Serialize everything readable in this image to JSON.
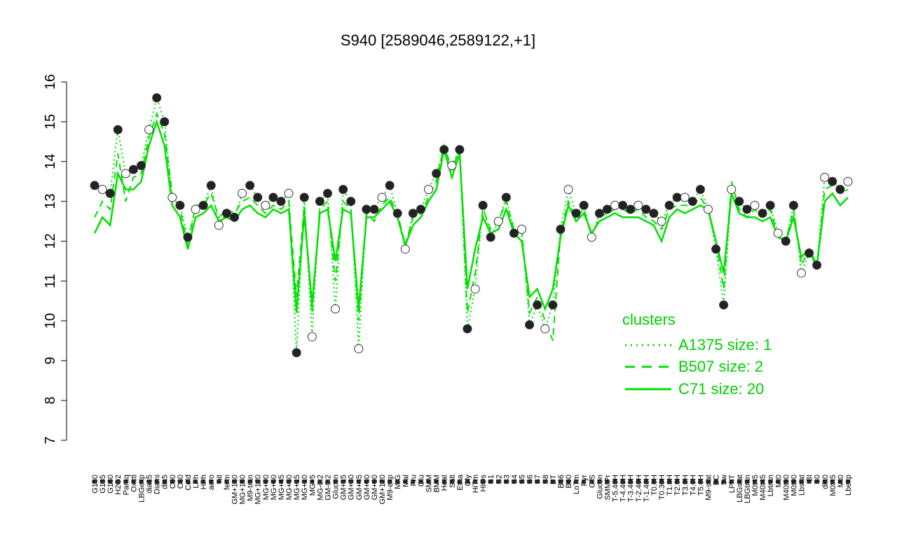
{
  "chart_data": {
    "type": "line",
    "title": "S940 [2589046,2589122,+1]",
    "xlabel": "",
    "ylabel": "",
    "ylim": [
      7,
      16
    ],
    "yticks": [
      7,
      8,
      9,
      10,
      11,
      12,
      13,
      14,
      15,
      16
    ],
    "grid": false,
    "legend": {
      "title": "clusters",
      "position": "right",
      "entries": [
        {
          "label": "A1375 size: 1",
          "style": "dotted"
        },
        {
          "label": "B507 size: 2",
          "style": "dashed"
        },
        {
          "label": "C71 size: 20",
          "style": "solid"
        }
      ]
    },
    "x_tick_labels": [
      "G150",
      "G135",
      "G180",
      "H2O2",
      "Paraq",
      "Oxctl",
      "LBGexp",
      "dia15",
      "Diami",
      "dia5",
      "C90",
      "C30",
      "Cold",
      "LPh",
      "HPh",
      "aero",
      "nit",
      "ferm",
      "GM+150",
      "MG+150",
      "M9-tran",
      "MG+120",
      "MG+90",
      "MG+60",
      "MG+45",
      "MG+30",
      "MG+15",
      "MG+10",
      "MG+5",
      "MG-0.2",
      "GM-0.2",
      "Glucon",
      "GM+15",
      "GM+30",
      "GM+45",
      "GM+60",
      "GM+90",
      "GM+120",
      "M9-exp",
      "M/G",
      "Mal",
      "Fru",
      "Glu",
      "SMM",
      "BMM",
      "Heat",
      "Salt",
      "Etha",
      "Gly",
      "HiTm",
      "HiOs",
      "S1",
      "S2",
      "S3",
      "S4",
      "S5",
      "S6",
      "S7",
      "S8",
      "BT",
      "B36",
      "B60",
      "LoTm",
      "Pyr",
      "G/S",
      "Glucon",
      "SMMPr",
      "T-5.40H",
      "T-4.40H",
      "T-3.40H",
      "T-2.40H",
      "T-1.40H",
      "T0.0H",
      "T0.30H",
      "T1.0H",
      "T2.0H",
      "T3.0H",
      "T4.0H",
      "T5.0H",
      "M9-stat",
      "BC",
      "Sw",
      "LPhT",
      "LBGstat",
      "LBGtran",
      "M0t45",
      "M40t45",
      "Lbtran",
      "Mt0",
      "M40t90",
      "M0t90",
      "Lbstat",
      "BI",
      "S0",
      "dia0",
      "M0t45",
      "Mt0",
      "Lbexp"
    ],
    "series": [
      {
        "style": "points",
        "values": [
          13.4,
          13.3,
          13.2,
          14.8,
          13.7,
          13.8,
          13.9,
          14.8,
          15.6,
          15.0,
          13.1,
          12.9,
          12.1,
          12.8,
          12.9,
          13.4,
          12.4,
          12.7,
          12.6,
          13.2,
          13.4,
          13.1,
          12.9,
          13.1,
          13.0,
          13.2,
          9.2,
          13.1,
          9.6,
          13.0,
          13.2,
          10.3,
          13.3,
          13.0,
          9.3,
          12.8,
          12.8,
          13.1,
          13.4,
          12.7,
          11.8,
          12.7,
          12.8,
          13.3,
          13.7,
          14.3,
          13.9,
          14.3,
          9.8,
          10.8,
          12.9,
          12.1,
          12.5,
          13.1,
          12.2,
          12.3,
          9.9,
          10.4,
          9.8,
          10.4,
          12.3,
          13.3,
          12.7,
          12.9,
          12.1,
          12.7,
          12.8,
          12.9,
          12.9,
          12.8,
          12.9,
          12.8,
          12.7,
          12.5,
          12.9,
          13.1,
          13.1,
          13.0,
          13.3,
          12.8,
          11.8,
          10.4,
          13.3,
          13.0,
          12.8,
          12.9,
          12.7,
          12.9,
          12.2,
          12.0,
          12.9,
          11.2,
          11.7,
          11.4,
          13.6,
          13.5,
          13.3,
          13.5
        ]
      },
      {
        "style": "solid",
        "values": [
          12.2,
          12.6,
          12.4,
          13.7,
          13.3,
          13.3,
          13.5,
          14.4,
          15.0,
          14.4,
          12.9,
          12.6,
          11.8,
          12.6,
          12.7,
          12.9,
          12.5,
          12.6,
          12.5,
          12.8,
          12.9,
          12.7,
          12.6,
          12.8,
          12.7,
          12.8,
          10.2,
          12.7,
          10.4,
          12.7,
          12.8,
          11.5,
          12.8,
          12.7,
          10.3,
          12.6,
          12.6,
          12.8,
          13.0,
          12.6,
          11.9,
          12.4,
          12.6,
          13.0,
          13.3,
          14.3,
          13.6,
          14.2,
          10.8,
          11.8,
          12.6,
          12.2,
          12.3,
          12.8,
          12.2,
          12.0,
          10.6,
          10.8,
          10.3,
          10.8,
          12.1,
          12.9,
          12.5,
          12.7,
          12.2,
          12.5,
          12.6,
          12.7,
          12.6,
          12.6,
          12.6,
          12.5,
          12.4,
          12.0,
          12.6,
          12.8,
          12.7,
          12.8,
          12.9,
          12.8,
          12.0,
          11.2,
          13.2,
          12.7,
          12.6,
          12.6,
          12.5,
          12.6,
          12.1,
          12.0,
          12.6,
          11.6,
          11.8,
          11.4,
          13.0,
          13.2,
          12.9,
          13.1
        ]
      },
      {
        "style": "dashed",
        "values": [
          12.6,
          13.0,
          12.8,
          14.2,
          13.0,
          13.6,
          13.7,
          14.6,
          15.2,
          14.7,
          13.2,
          12.8,
          11.9,
          12.9,
          12.9,
          13.2,
          12.6,
          12.8,
          12.7,
          13.0,
          13.1,
          12.9,
          12.7,
          12.9,
          12.8,
          13.0,
          10.6,
          12.9,
          10.2,
          12.8,
          13.0,
          11.0,
          13.0,
          12.8,
          10.0,
          12.7,
          12.5,
          12.9,
          13.1,
          12.7,
          11.9,
          12.6,
          12.7,
          13.1,
          13.5,
          14.4,
          13.8,
          14.3,
          10.2,
          11.2,
          12.8,
          12.3,
          12.5,
          13.0,
          12.3,
          12.2,
          10.2,
          10.6,
          10.0,
          9.5,
          12.2,
          13.0,
          12.6,
          12.8,
          12.1,
          12.6,
          12.7,
          12.8,
          12.8,
          12.7,
          12.8,
          12.6,
          12.5,
          12.3,
          12.8,
          12.9,
          12.9,
          12.9,
          13.1,
          12.8,
          12.0,
          10.8,
          13.5,
          12.8,
          12.6,
          12.8,
          12.6,
          12.8,
          12.1,
          12.0,
          12.8,
          11.4,
          11.8,
          11.3,
          13.3,
          13.4,
          13.2,
          13.3
        ]
      },
      {
        "style": "dotted",
        "values": [
          13.4,
          13.3,
          13.2,
          14.8,
          13.7,
          13.8,
          13.9,
          14.8,
          15.6,
          15.0,
          13.1,
          12.9,
          12.1,
          12.8,
          12.9,
          13.4,
          12.4,
          12.7,
          12.6,
          13.2,
          13.4,
          13.1,
          12.9,
          13.1,
          13.0,
          13.2,
          9.2,
          13.1,
          9.6,
          13.0,
          13.2,
          10.3,
          13.3,
          13.0,
          9.3,
          12.8,
          12.8,
          13.1,
          13.4,
          12.7,
          11.8,
          12.7,
          12.8,
          13.3,
          13.7,
          14.3,
          13.9,
          14.3,
          9.8,
          10.8,
          12.9,
          12.1,
          12.5,
          13.1,
          12.2,
          12.3,
          9.9,
          10.4,
          9.8,
          10.4,
          12.3,
          13.3,
          12.7,
          12.9,
          12.1,
          12.7,
          12.8,
          12.9,
          12.9,
          12.8,
          12.9,
          12.8,
          12.7,
          12.5,
          12.9,
          13.1,
          13.1,
          13.0,
          13.3,
          12.8,
          11.8,
          10.4,
          13.3,
          13.0,
          12.8,
          12.9,
          12.7,
          12.9,
          12.2,
          12.0,
          12.9,
          11.2,
          11.7,
          11.4,
          13.6,
          13.5,
          13.3,
          13.5
        ]
      }
    ],
    "colors": {
      "lines": "#00e000",
      "points_fill": "#222222",
      "points_open": "#ffffff",
      "axis": "#000000"
    }
  }
}
